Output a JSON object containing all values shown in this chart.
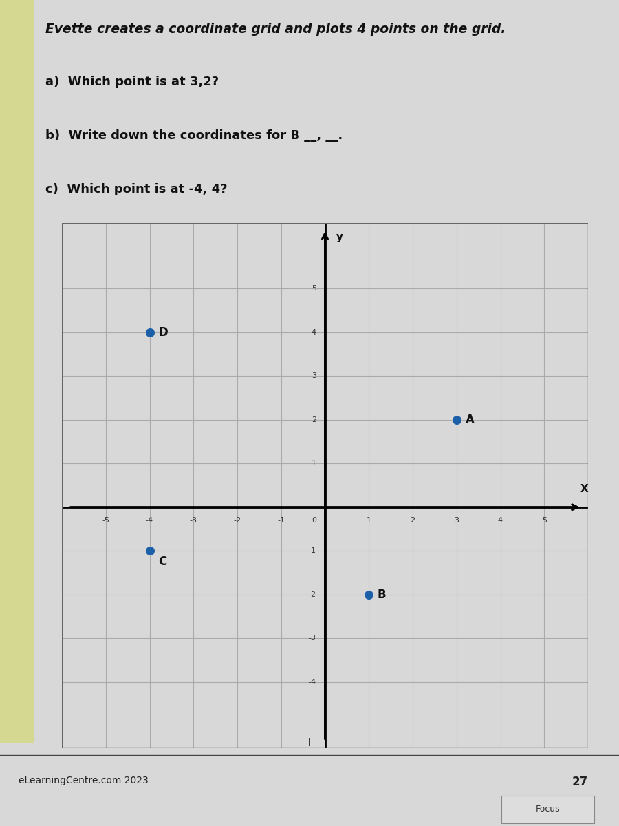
{
  "title_line1": "Evette creates a coordinate grid and plots 4 points on the grid.",
  "question_a": "a)  Which point is at 3,2?",
  "question_b": "b)  Write down the coordinates for B __, __.",
  "question_c": "c)  Which point is at -4, 4?",
  "points": {
    "A": [
      3,
      2
    ],
    "B": [
      1,
      -2
    ],
    "C": [
      -4,
      -1
    ],
    "D": [
      -4,
      4
    ]
  },
  "point_color": "#1a5fa8",
  "point_size": 70,
  "axis_color": "#000000",
  "grid_color": "#aaaaaa",
  "grid_linewidth": 0.8,
  "axis_linewidth": 2.0,
  "xlim": [
    -6,
    6
  ],
  "ylim": [
    -5.5,
    6.5
  ],
  "xticks": [
    -5,
    -4,
    -3,
    -2,
    -1,
    0,
    1,
    2,
    3,
    4,
    5
  ],
  "yticks": [
    -4,
    -3,
    -2,
    -1,
    0,
    1,
    2,
    3,
    4,
    5
  ],
  "grid_xmin": -5.5,
  "grid_xmax": 5.5,
  "grid_ymin": -5.0,
  "grid_ymax": 5.5,
  "tick_fontsize": 8,
  "xlabel": "X",
  "ylabel": "y",
  "page_bg_color": "#d8d8d8",
  "content_bg_color": "#e8e8e5",
  "grid_bg_color": "#ffffff",
  "left_strip_color": "#d4d890",
  "footer_text": "eLearningCentre.com 2023",
  "page_number": "27",
  "focus_text": "Focus",
  "label_fontsize": 12
}
